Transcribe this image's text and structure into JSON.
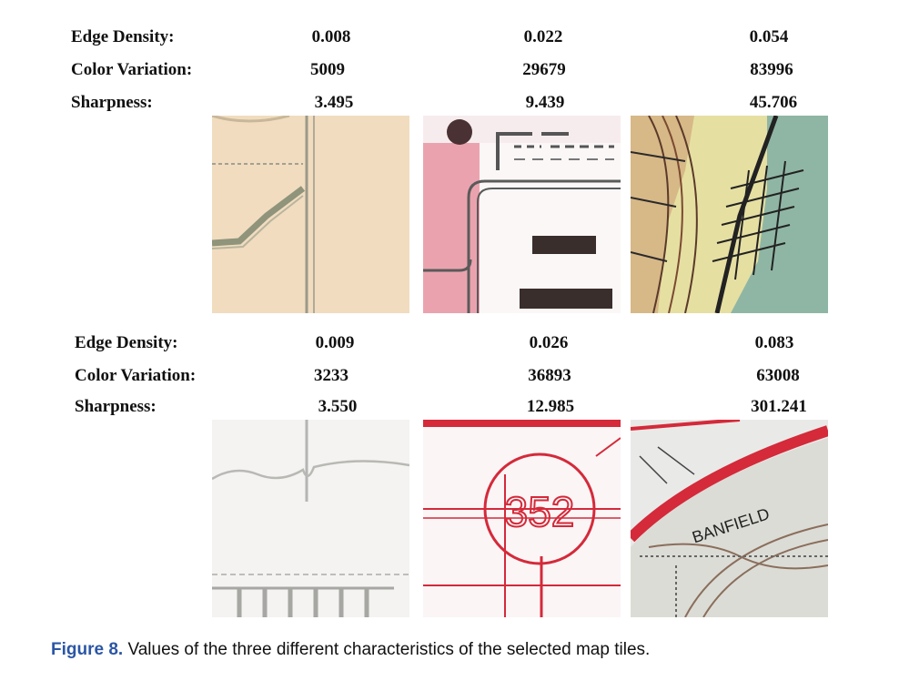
{
  "labels": {
    "edge_density": "Edge Density:",
    "color_variation": "Color Variation:",
    "sharpness": "Sharpness:"
  },
  "rows": [
    {
      "edge_density": [
        "0.008",
        "0.022",
        "0.054"
      ],
      "color_variation": [
        "5009",
        "29679",
        "83996"
      ],
      "sharpness": [
        "3.495",
        "9.439",
        "45.706"
      ]
    },
    {
      "edge_density": [
        "0.009",
        "0.026",
        "0.083"
      ],
      "color_variation": [
        "3233",
        "36893",
        "63008"
      ],
      "sharpness": [
        "3.550",
        "12.985",
        "301.241"
      ]
    }
  ],
  "tiles": {
    "circle_number": "352",
    "place_name": "BANFIELD"
  },
  "caption": {
    "figure_label": "Figure 8.",
    "text": " Values of the three different characteristics of the selected map tiles."
  },
  "colors": {
    "caption_accent": "#2b56a5",
    "map_red": "#d42a3a",
    "map_beige": "#f2dcc0"
  }
}
